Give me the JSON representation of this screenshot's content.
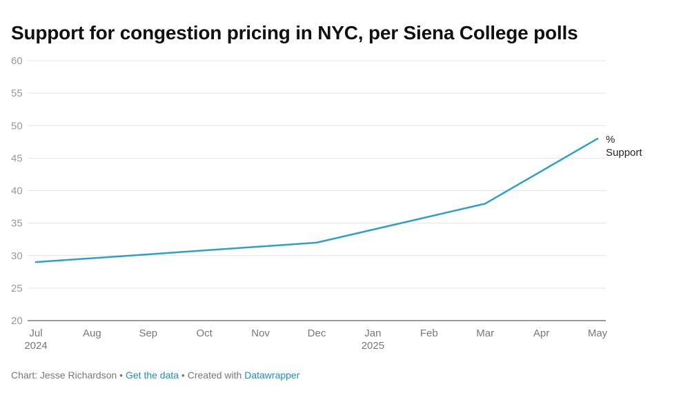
{
  "chart_data": {
    "type": "line",
    "title": "Support for congestion pricing in NYC, per Siena College polls",
    "xlabel": "",
    "ylabel": "",
    "ylim": [
      20,
      60
    ],
    "yticks": [
      20,
      25,
      30,
      35,
      40,
      45,
      50,
      55,
      60
    ],
    "grid": true,
    "x_ticks": [
      {
        "label": "Jul",
        "year": "2024"
      },
      {
        "label": "Aug",
        "year": ""
      },
      {
        "label": "Sep",
        "year": ""
      },
      {
        "label": "Oct",
        "year": ""
      },
      {
        "label": "Nov",
        "year": ""
      },
      {
        "label": "Dec",
        "year": ""
      },
      {
        "label": "Jan",
        "year": "2025"
      },
      {
        "label": "Feb",
        "year": ""
      },
      {
        "label": "Mar",
        "year": ""
      },
      {
        "label": "Apr",
        "year": ""
      },
      {
        "label": "May",
        "year": ""
      }
    ],
    "series": [
      {
        "name": "% Support",
        "label_lines": [
          "%",
          "Support"
        ],
        "color": "#2ba0c8",
        "points": [
          {
            "x": "Jul 2024",
            "y": 29
          },
          {
            "x": "Dec 2024",
            "y": 32
          },
          {
            "x": "Mar 2025",
            "y": 38
          },
          {
            "x": "May 2025",
            "y": 48
          }
        ]
      }
    ]
  },
  "footer": {
    "prefix": "Chart: Jesse Richardson",
    "sep1": " • ",
    "link1": "Get the data",
    "sep2": " • Created with ",
    "link2": "Datawrapper"
  }
}
